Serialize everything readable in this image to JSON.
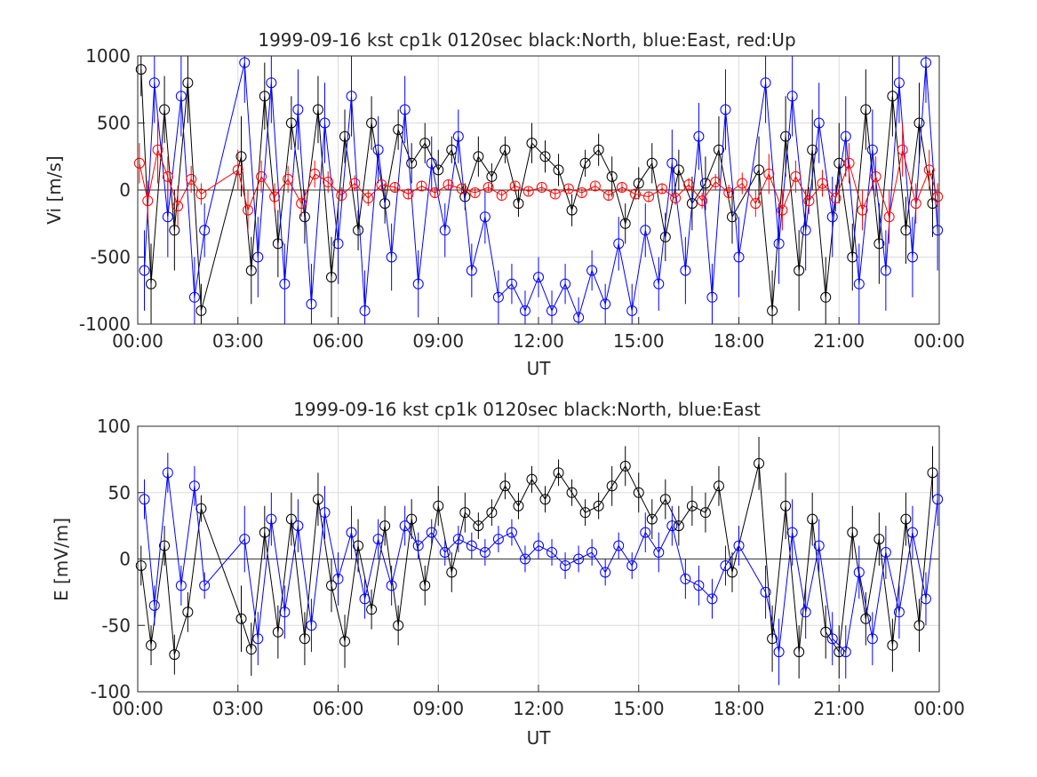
{
  "chart_data": [
    {
      "type": "scatter",
      "title": "1999-09-16 kst cp1k 0120sec black:North, blue:East, red:Up",
      "xlabel": "UT",
      "ylabel": "Vi [m/s]",
      "xlim": [
        0,
        24
      ],
      "ylim": [
        -1000,
        1000
      ],
      "xticks": [
        "00:00",
        "03:00",
        "06:00",
        "09:00",
        "12:00",
        "15:00",
        "18:00",
        "21:00",
        "00:00"
      ],
      "yticks": [
        "-1000",
        "-500",
        "0",
        "500",
        "1000"
      ],
      "grid": true,
      "series": [
        {
          "color": "#000000",
          "hours": [
            0.1,
            0.4,
            0.8,
            1.1,
            1.5,
            1.9,
            3.1,
            3.4,
            3.8,
            4.2,
            4.6,
            5.0,
            5.4,
            5.8,
            6.2,
            6.6,
            7.0,
            7.4,
            7.8,
            8.2,
            8.6,
            9.0,
            9.4,
            9.8,
            10.2,
            10.6,
            11.0,
            11.4,
            11.8,
            12.2,
            12.6,
            13.0,
            13.4,
            13.8,
            14.2,
            14.6,
            15.0,
            15.4,
            15.8,
            16.2,
            16.6,
            17.0,
            17.4,
            17.8,
            18.6,
            19.0,
            19.4,
            19.8,
            20.2,
            20.6,
            21.0,
            21.4,
            21.8,
            22.2,
            22.6,
            23.0,
            23.4,
            23.8
          ],
          "values": [
            900,
            -700,
            600,
            -300,
            800,
            -900,
            250,
            -600,
            700,
            -400,
            500,
            -200,
            600,
            -650,
            400,
            -300,
            500,
            -100,
            450,
            200,
            350,
            150,
            300,
            -50,
            250,
            100,
            300,
            -100,
            350,
            250,
            150,
            -150,
            200,
            300,
            100,
            -250,
            50,
            200,
            -350,
            150,
            -100,
            50,
            300,
            -200,
            150,
            -900,
            400,
            -600,
            300,
            -800,
            200,
            -500,
            600,
            -400,
            700,
            -300,
            500,
            -100
          ],
          "error": [
            200,
            300,
            250,
            300,
            300,
            200,
            300,
            250,
            250,
            250,
            200,
            200,
            250,
            300,
            200,
            150,
            200,
            150,
            150,
            150,
            150,
            150,
            100,
            100,
            150,
            100,
            100,
            100,
            150,
            120,
            120,
            120,
            100,
            120,
            150,
            150,
            120,
            150,
            180,
            150,
            200,
            200,
            250,
            200,
            250,
            300,
            300,
            300,
            300,
            300,
            300,
            250,
            300,
            300,
            300,
            250,
            300,
            250
          ]
        },
        {
          "color": "#0000ff",
          "hours": [
            0.2,
            0.5,
            0.9,
            1.3,
            1.7,
            2.0,
            3.2,
            3.6,
            4.0,
            4.4,
            4.8,
            5.2,
            5.6,
            6.0,
            6.4,
            6.8,
            7.2,
            7.6,
            8.0,
            8.4,
            8.8,
            9.2,
            9.6,
            10.0,
            10.4,
            10.8,
            11.2,
            11.6,
            12.0,
            12.4,
            12.8,
            13.2,
            13.6,
            14.0,
            14.4,
            14.8,
            15.2,
            15.6,
            16.0,
            16.4,
            16.8,
            17.2,
            17.6,
            18.0,
            18.8,
            19.2,
            19.6,
            20.0,
            20.4,
            20.8,
            21.2,
            21.6,
            22.0,
            22.4,
            22.8,
            23.2,
            23.6,
            23.95
          ],
          "values": [
            -600,
            800,
            -200,
            700,
            -800,
            -300,
            950,
            -500,
            800,
            -700,
            600,
            -850,
            500,
            -400,
            700,
            -900,
            300,
            -500,
            600,
            -700,
            200,
            -300,
            400,
            -600,
            -200,
            -800,
            -700,
            -900,
            -650,
            -900,
            -700,
            -950,
            -600,
            -850,
            -400,
            -900,
            -300,
            -700,
            200,
            -600,
            400,
            -800,
            600,
            -500,
            800,
            -400,
            700,
            -300,
            500,
            -200,
            400,
            -700,
            300,
            -600,
            800,
            -500,
            950,
            -300
          ],
          "error": [
            300,
            300,
            300,
            300,
            300,
            200,
            300,
            300,
            300,
            300,
            300,
            300,
            300,
            300,
            300,
            300,
            250,
            250,
            250,
            250,
            200,
            200,
            200,
            200,
            200,
            200,
            150,
            150,
            150,
            150,
            150,
            150,
            150,
            150,
            200,
            200,
            200,
            200,
            250,
            250,
            250,
            250,
            300,
            300,
            300,
            300,
            300,
            300,
            300,
            300,
            300,
            300,
            300,
            300,
            300,
            300,
            300,
            300
          ]
        },
        {
          "color": "#ff0000",
          "hours": [
            0.05,
            0.3,
            0.6,
            0.9,
            1.2,
            1.6,
            1.9,
            3.0,
            3.3,
            3.7,
            4.1,
            4.5,
            4.9,
            5.3,
            5.7,
            6.1,
            6.5,
            6.9,
            7.3,
            7.7,
            8.1,
            8.5,
            8.9,
            9.3,
            9.7,
            10.1,
            10.5,
            10.9,
            11.3,
            11.7,
            12.1,
            12.5,
            12.9,
            13.3,
            13.7,
            14.1,
            14.5,
            14.9,
            15.3,
            15.7,
            16.1,
            16.5,
            16.9,
            17.3,
            17.7,
            18.1,
            18.5,
            18.9,
            19.3,
            19.7,
            20.1,
            20.5,
            20.9,
            21.3,
            21.7,
            22.1,
            22.5,
            22.9,
            23.3,
            23.7,
            23.95
          ],
          "values": [
            200,
            -80,
            300,
            100,
            -120,
            80,
            -30,
            150,
            -150,
            100,
            -50,
            80,
            -100,
            120,
            60,
            -40,
            50,
            -60,
            40,
            20,
            -30,
            30,
            -20,
            40,
            10,
            -20,
            20,
            -40,
            30,
            -10,
            20,
            -30,
            10,
            -20,
            30,
            -40,
            20,
            -30,
            -50,
            10,
            -60,
            40,
            -80,
            60,
            -20,
            50,
            -100,
            120,
            -150,
            100,
            -80,
            50,
            -60,
            200,
            -150,
            100,
            -200,
            300,
            -100,
            150,
            -50
          ],
          "error": [
            150,
            150,
            250,
            150,
            150,
            100,
            80,
            150,
            150,
            120,
            100,
            100,
            100,
            100,
            80,
            60,
            60,
            60,
            50,
            40,
            40,
            40,
            40,
            40,
            30,
            30,
            30,
            30,
            30,
            30,
            30,
            30,
            30,
            30,
            30,
            40,
            40,
            40,
            40,
            40,
            50,
            50,
            60,
            60,
            60,
            80,
            100,
            150,
            150,
            120,
            100,
            100,
            100,
            150,
            150,
            150,
            200,
            200,
            150,
            150,
            100
          ]
        }
      ]
    },
    {
      "type": "scatter",
      "title": "1999-09-16 kst cp1k 0120sec black:North, blue:East",
      "xlabel": "UT",
      "ylabel": "E [mV/m]",
      "xlim": [
        0,
        24
      ],
      "ylim": [
        -100,
        100
      ],
      "xticks": [
        "00:00",
        "03:00",
        "06:00",
        "09:00",
        "12:00",
        "15:00",
        "18:00",
        "21:00",
        "00:00"
      ],
      "yticks": [
        "-100",
        "-50",
        "0",
        "50",
        "100"
      ],
      "grid": true,
      "series": [
        {
          "color": "#000000",
          "hours": [
            0.1,
            0.4,
            0.8,
            1.1,
            1.5,
            1.9,
            3.1,
            3.4,
            3.8,
            4.2,
            4.6,
            5.0,
            5.4,
            5.8,
            6.2,
            6.6,
            7.0,
            7.4,
            7.8,
            8.2,
            8.6,
            9.0,
            9.4,
            9.8,
            10.2,
            10.6,
            11.0,
            11.4,
            11.8,
            12.2,
            12.6,
            13.0,
            13.4,
            13.8,
            14.2,
            14.6,
            15.0,
            15.4,
            15.8,
            16.2,
            16.6,
            17.0,
            17.4,
            17.8,
            18.6,
            19.0,
            19.4,
            19.8,
            20.2,
            20.6,
            21.0,
            21.4,
            21.8,
            22.2,
            22.6,
            23.0,
            23.4,
            23.8
          ],
          "values": [
            -5,
            -65,
            10,
            -72,
            -40,
            38,
            -45,
            -68,
            20,
            -55,
            30,
            -60,
            45,
            -20,
            -62,
            10,
            -38,
            25,
            -50,
            30,
            -20,
            40,
            -10,
            35,
            25,
            35,
            55,
            40,
            60,
            45,
            65,
            50,
            35,
            40,
            55,
            70,
            50,
            30,
            45,
            25,
            40,
            35,
            55,
            -10,
            72,
            -60,
            40,
            -70,
            30,
            -55,
            -70,
            20,
            -45,
            15,
            -65,
            30,
            -50,
            65
          ],
          "error": [
            15,
            15,
            15,
            15,
            15,
            10,
            25,
            20,
            20,
            20,
            20,
            20,
            20,
            20,
            20,
            20,
            15,
            15,
            15,
            15,
            15,
            15,
            15,
            15,
            10,
            10,
            10,
            10,
            10,
            10,
            10,
            10,
            10,
            10,
            15,
            15,
            15,
            15,
            15,
            15,
            15,
            15,
            15,
            15,
            20,
            25,
            25,
            20,
            20,
            20,
            20,
            20,
            20,
            20,
            20,
            20,
            20,
            20
          ]
        },
        {
          "color": "#0000ff",
          "hours": [
            0.2,
            0.5,
            0.9,
            1.3,
            1.7,
            2.0,
            3.2,
            3.6,
            4.0,
            4.4,
            4.8,
            5.2,
            5.6,
            6.0,
            6.4,
            6.8,
            7.2,
            7.6,
            8.0,
            8.4,
            8.8,
            9.2,
            9.6,
            10.0,
            10.4,
            10.8,
            11.2,
            11.6,
            12.0,
            12.4,
            12.8,
            13.2,
            13.6,
            14.0,
            14.4,
            14.8,
            15.2,
            15.6,
            16.0,
            16.4,
            16.8,
            17.2,
            17.6,
            18.0,
            18.8,
            19.2,
            19.6,
            20.0,
            20.4,
            20.8,
            21.2,
            21.6,
            22.0,
            22.4,
            22.8,
            23.2,
            23.6,
            23.95
          ],
          "values": [
            45,
            -35,
            65,
            -20,
            55,
            -20,
            15,
            -60,
            30,
            -40,
            25,
            -50,
            35,
            -15,
            20,
            -30,
            15,
            -20,
            25,
            10,
            20,
            5,
            15,
            10,
            5,
            15,
            20,
            0,
            10,
            5,
            -5,
            0,
            5,
            -10,
            10,
            -5,
            20,
            5,
            25,
            -15,
            -20,
            -30,
            -5,
            10,
            -25,
            -70,
            20,
            -40,
            10,
            -60,
            -70,
            -10,
            -60,
            5,
            -40,
            20,
            -30,
            45
          ],
          "error": [
            15,
            15,
            15,
            15,
            15,
            10,
            25,
            20,
            20,
            20,
            20,
            20,
            20,
            20,
            20,
            15,
            15,
            15,
            15,
            10,
            10,
            10,
            10,
            10,
            10,
            10,
            10,
            10,
            10,
            10,
            10,
            10,
            10,
            10,
            10,
            10,
            15,
            15,
            15,
            15,
            15,
            15,
            15,
            15,
            20,
            25,
            25,
            20,
            20,
            20,
            20,
            20,
            20,
            20,
            20,
            20,
            20,
            20
          ]
        }
      ]
    }
  ]
}
